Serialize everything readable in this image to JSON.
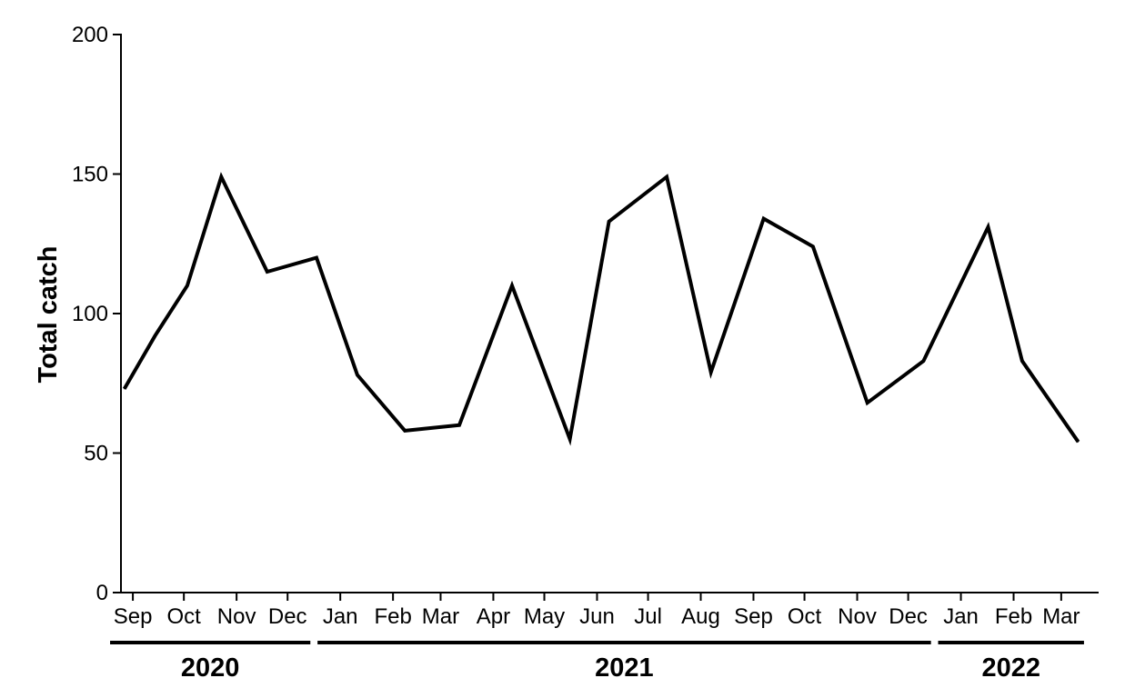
{
  "chart_data": {
    "type": "line",
    "title": "",
    "xlabel": "",
    "ylabel": "Total catch",
    "ylim": [
      0,
      200
    ],
    "yticks": [
      "0",
      "50",
      "100",
      "150",
      "200"
    ],
    "xticks": [
      "Sep",
      "Oct",
      "Nov",
      "Dec",
      "Jan",
      "Feb",
      "Mar",
      "Apr",
      "May",
      "Jun",
      "Jul",
      "Aug",
      "Sep",
      "Oct",
      "Nov",
      "Dec",
      "Jan",
      "Feb",
      "Mar"
    ],
    "year_groups": [
      {
        "label": "2020",
        "months": [
          "Sep",
          "Oct",
          "Nov",
          "Dec"
        ]
      },
      {
        "label": "2021",
        "months": [
          "Jan",
          "Feb",
          "Mar",
          "Apr",
          "May",
          "Jun",
          "Jul",
          "Aug",
          "Sep",
          "Oct",
          "Nov",
          "Dec"
        ]
      },
      {
        "label": "2022",
        "months": [
          "Jan",
          "Feb",
          "Mar"
        ]
      }
    ],
    "grid": false,
    "line_color": "#000000",
    "x": [
      "2020-08-27",
      "2020-09-14",
      "2020-10-03",
      "2020-10-23",
      "2020-11-19",
      "2020-12-18",
      "2021-01-11",
      "2021-02-08",
      "2021-03-12",
      "2021-04-12",
      "2021-05-16",
      "2021-06-08",
      "2021-07-12",
      "2021-08-07",
      "2021-09-07",
      "2021-10-06",
      "2021-11-07",
      "2021-12-10",
      "2022-01-17",
      "2022-02-06",
      "2022-03-11"
    ],
    "values": [
      73,
      92,
      110,
      149,
      115,
      120,
      78,
      58,
      60,
      110,
      55,
      133,
      149,
      79,
      134,
      124,
      68,
      83,
      131,
      83,
      54
    ]
  }
}
